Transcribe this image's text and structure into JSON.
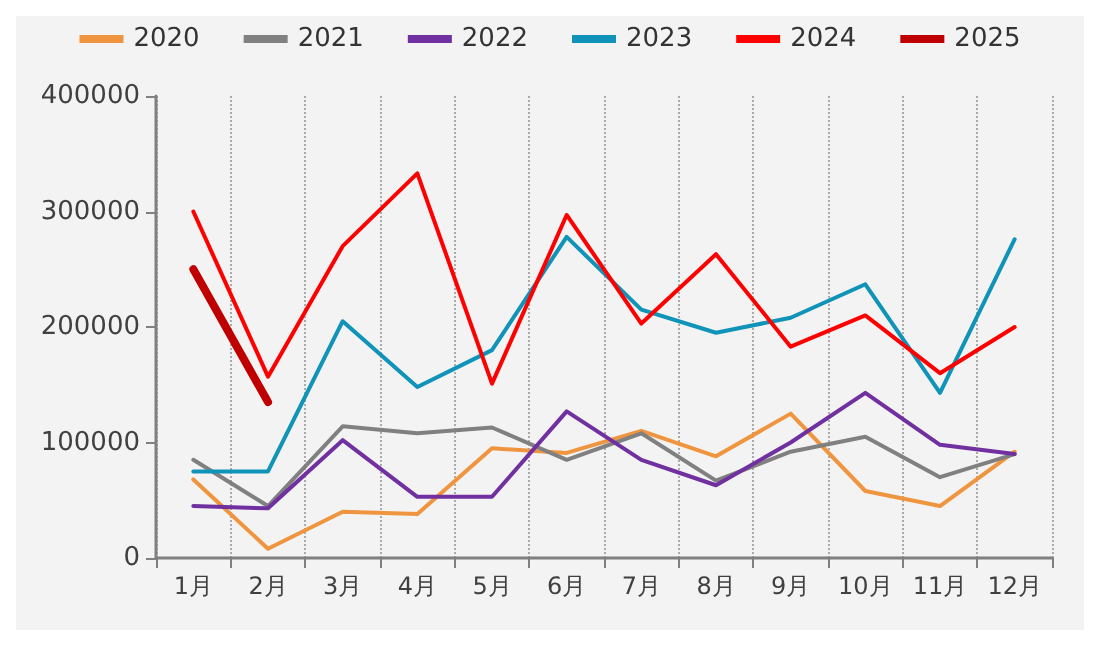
{
  "chart_data": {
    "type": "line",
    "categories": [
      "1月",
      "2月",
      "3月",
      "4月",
      "5月",
      "6月",
      "7月",
      "8月",
      "9月",
      "10月",
      "11月",
      "12月"
    ],
    "series": [
      {
        "name": "2020",
        "color": "#f0953f",
        "values": [
          68000,
          8000,
          40000,
          38000,
          95000,
          91000,
          110000,
          88000,
          125000,
          58000,
          45000,
          92000
        ]
      },
      {
        "name": "2021",
        "color": "#808080",
        "values": [
          85000,
          45000,
          114000,
          108000,
          113000,
          85000,
          108000,
          67000,
          92000,
          105000,
          70000,
          90000
        ]
      },
      {
        "name": "2022",
        "color": "#7030a0",
        "values": [
          45000,
          43000,
          102000,
          53000,
          53000,
          127000,
          85000,
          63000,
          100000,
          143000,
          98000,
          90000
        ]
      },
      {
        "name": "2023",
        "color": "#0f93b8",
        "values": [
          75000,
          75000,
          205000,
          148000,
          180000,
          278000,
          215000,
          195000,
          208000,
          237000,
          143000,
          276000
        ]
      },
      {
        "name": "2024",
        "color": "#ff0000",
        "values": [
          300000,
          157000,
          270000,
          333000,
          151000,
          297000,
          203000,
          263000,
          183000,
          210000,
          160000,
          200000
        ]
      },
      {
        "name": "2025",
        "color": "#c00000",
        "values": [
          250000,
          135000,
          null,
          null,
          null,
          null,
          null,
          null,
          null,
          null,
          null,
          null
        ]
      }
    ],
    "ylim": [
      0,
      400000
    ],
    "yticks": [
      0,
      100000,
      200000,
      300000,
      400000
    ],
    "grid": "x",
    "legend": "top",
    "marker": "none",
    "line_style": "solid"
  }
}
